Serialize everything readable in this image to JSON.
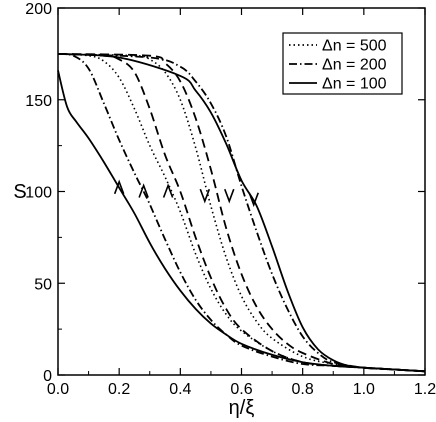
{
  "chart_data": {
    "type": "line",
    "title": "",
    "xlabel": "η/ξ",
    "ylabel": "S",
    "xlim": [
      0,
      1.2
    ],
    "ylim": [
      0,
      200
    ],
    "x_ticks": [
      0.0,
      0.2,
      0.4,
      0.6,
      0.8,
      1.0,
      1.2
    ],
    "x_tick_labels": [
      "0.0",
      "0.2",
      "0.4",
      "0.6",
      "0.8",
      "1.0",
      "1.2"
    ],
    "y_ticks": [
      0,
      50,
      100,
      150,
      200
    ],
    "y_tick_labels": [
      "0",
      "50",
      "100",
      "150",
      "200"
    ],
    "grid": false,
    "legend_position": "top-right",
    "legend": [
      {
        "label": "Δn = 500",
        "style": "dotted"
      },
      {
        "label": "Δn = 200",
        "style": "dashdot"
      },
      {
        "label": "Δn = 100",
        "style": "solid"
      }
    ],
    "series": [
      {
        "group": "Δn = 100",
        "branch": "forward",
        "style": "solid",
        "x": [
          0.0,
          0.03,
          0.06,
          0.1,
          0.15,
          0.2,
          0.25,
          0.3,
          0.35,
          0.4,
          0.45,
          0.5,
          0.55,
          0.6,
          0.7,
          0.8,
          0.9,
          1.0,
          1.1,
          1.2
        ],
        "y": [
          166,
          146,
          138,
          129,
          116,
          102,
          88,
          72,
          58,
          46,
          36,
          28,
          22,
          17,
          11,
          7,
          5,
          4,
          3,
          2
        ]
      },
      {
        "group": "Δn = 100",
        "branch": "backward",
        "style": "solid",
        "x": [
          0.0,
          0.2,
          0.4,
          0.45,
          0.5,
          0.55,
          0.6,
          0.65,
          0.7,
          0.75,
          0.8,
          0.85,
          0.9,
          0.95,
          1.0,
          1.1,
          1.2
        ],
        "y": [
          175,
          173,
          163,
          155,
          143,
          126,
          106,
          92,
          70,
          46,
          26,
          14,
          8,
          5,
          4,
          3,
          2
        ]
      },
      {
        "group": "Δn = 200",
        "branch": "forward",
        "style": "dashdot",
        "x": [
          0.0,
          0.05,
          0.1,
          0.15,
          0.2,
          0.25,
          0.28,
          0.3,
          0.35,
          0.4,
          0.45,
          0.5,
          0.55,
          0.6,
          0.7,
          0.8,
          0.9,
          1.0,
          1.1,
          1.2
        ],
        "y": [
          175,
          174,
          167,
          148,
          128,
          110,
          100,
          93,
          74,
          56,
          41,
          30,
          22,
          16,
          10,
          6,
          5,
          4,
          3,
          2
        ]
      },
      {
        "group": "Δn = 200",
        "branch": "backward",
        "style": "dashdot",
        "x": [
          0.0,
          0.3,
          0.4,
          0.45,
          0.5,
          0.55,
          0.6,
          0.65,
          0.7,
          0.75,
          0.8,
          0.85,
          0.9,
          1.0,
          1.1,
          1.2
        ],
        "y": [
          175,
          173,
          168,
          160,
          148,
          130,
          103,
          78,
          55,
          36,
          21,
          12,
          7,
          4,
          3,
          2
        ]
      },
      {
        "group": "Δn = 500",
        "branch": "forward",
        "style": "dotted",
        "x": [
          0.0,
          0.1,
          0.15,
          0.2,
          0.25,
          0.3,
          0.35,
          0.4,
          0.45,
          0.5,
          0.55,
          0.6,
          0.7,
          0.8,
          0.9,
          1.0,
          1.1,
          1.2
        ],
        "y": [
          175,
          174,
          171,
          162,
          145,
          125,
          108,
          89,
          66,
          47,
          33,
          24,
          13,
          7,
          5,
          4,
          3,
          2
        ]
      },
      {
        "group": "Δn = 500",
        "branch": "backward",
        "style": "dotted",
        "x": [
          0.0,
          0.25,
          0.3,
          0.35,
          0.4,
          0.45,
          0.5,
          0.55,
          0.6,
          0.65,
          0.7,
          0.8,
          0.9,
          1.0,
          1.1,
          1.2
        ],
        "y": [
          175,
          174,
          172,
          165,
          150,
          124,
          92,
          64,
          43,
          29,
          20,
          10,
          6,
          4,
          3,
          2
        ]
      },
      {
        "group": "unlabeled",
        "branch": "forward",
        "style": "dashed",
        "x": [
          0.0,
          0.15,
          0.2,
          0.25,
          0.3,
          0.35,
          0.4,
          0.45,
          0.5,
          0.55,
          0.6,
          0.7,
          0.8,
          0.9,
          1.0,
          1.1,
          1.2
        ],
        "y": [
          175,
          174,
          172,
          165,
          145,
          120,
          100,
          75,
          53,
          36,
          25,
          13,
          7,
          5,
          4,
          3,
          2
        ]
      },
      {
        "group": "unlabeled",
        "branch": "backward",
        "style": "dashed",
        "x": [
          0.0,
          0.3,
          0.35,
          0.4,
          0.45,
          0.5,
          0.55,
          0.6,
          0.65,
          0.7,
          0.75,
          0.8,
          0.9,
          1.0,
          1.1,
          1.2
        ],
        "y": [
          175,
          174,
          170,
          160,
          140,
          112,
          80,
          55,
          37,
          25,
          17,
          12,
          6,
          4,
          3,
          2
        ]
      }
    ],
    "annotations": [
      {
        "type": "arrow",
        "direction": "up",
        "x": 0.2,
        "y": 102
      },
      {
        "type": "arrow",
        "direction": "up",
        "x": 0.28,
        "y": 100
      },
      {
        "type": "arrow",
        "direction": "up",
        "x": 0.36,
        "y": 100
      },
      {
        "type": "arrow",
        "direction": "down",
        "x": 0.48,
        "y": 98
      },
      {
        "type": "arrow",
        "direction": "down",
        "x": 0.56,
        "y": 98
      },
      {
        "type": "arrow",
        "direction": "down",
        "x": 0.64,
        "y": 96
      }
    ]
  }
}
